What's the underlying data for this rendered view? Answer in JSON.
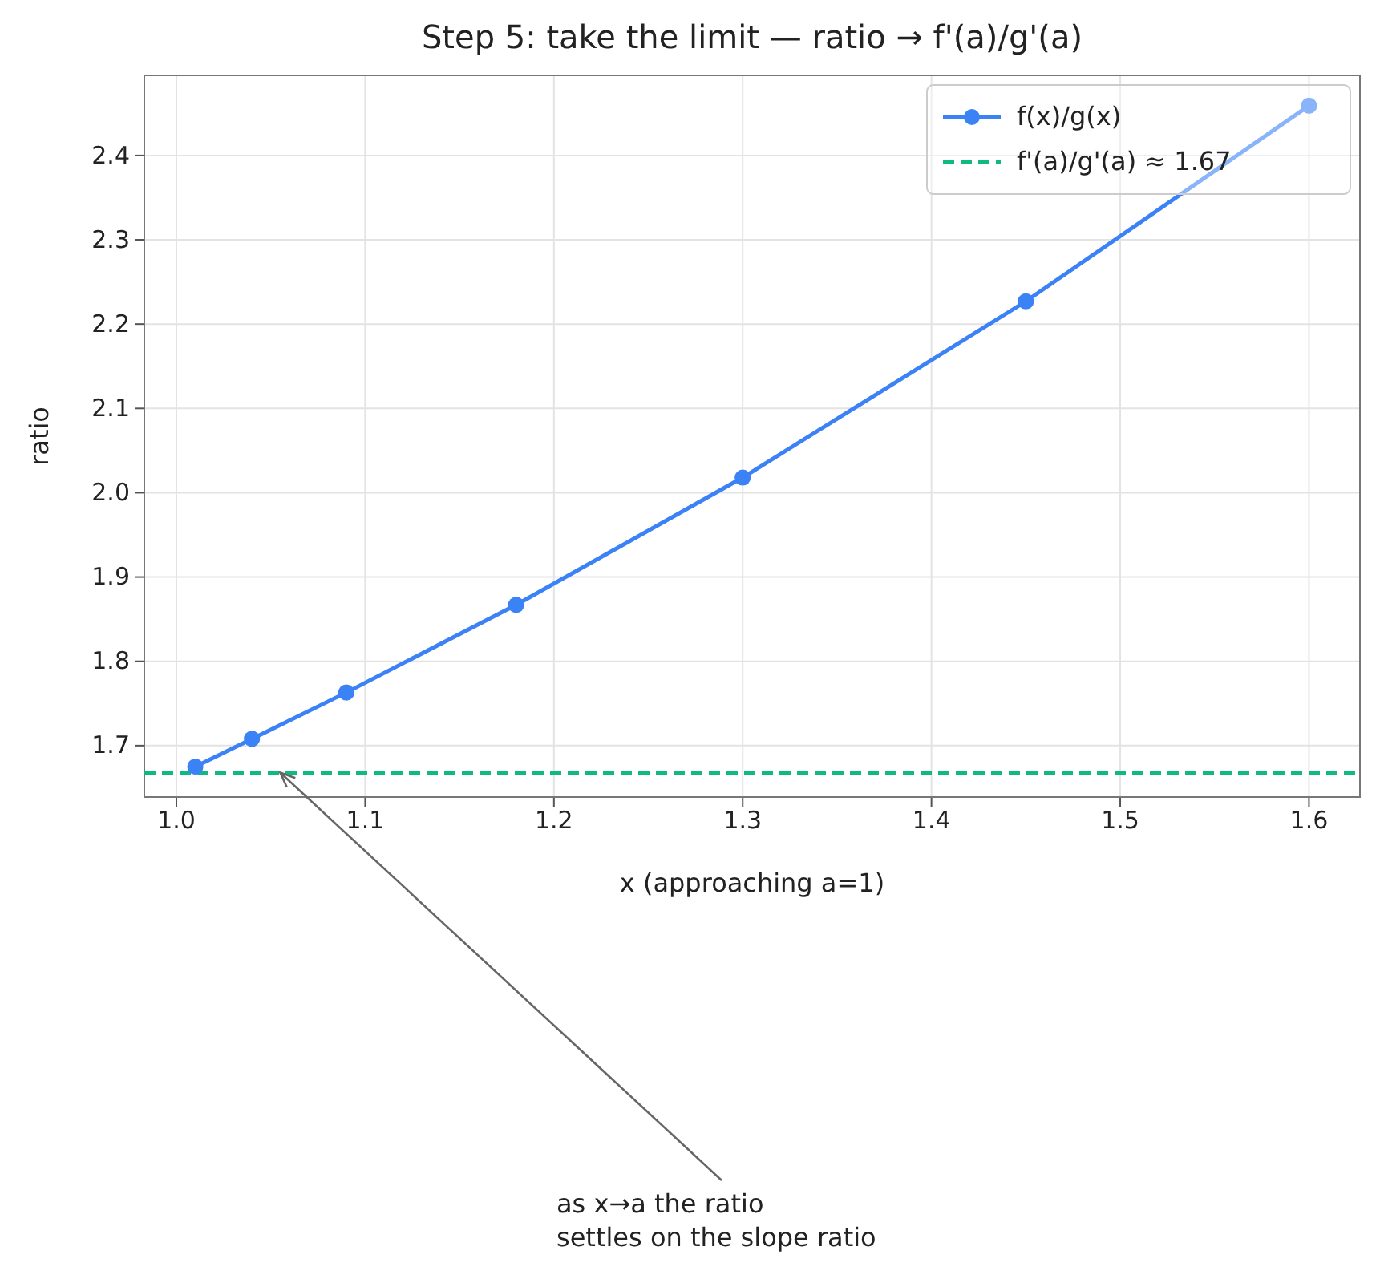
{
  "chart_data": {
    "type": "line",
    "title": "Step 5: take the limit — ratio → f'(a)/g'(a)",
    "xlabel": "x  (approaching a=1)",
    "ylabel": "ratio",
    "x": [
      1.01,
      1.04,
      1.09,
      1.18,
      1.3,
      1.45,
      1.6
    ],
    "series": [
      {
        "name": "f(x)/g(x)",
        "color": "#3b82f6",
        "values": [
          1.675,
          1.708,
          1.763,
          1.867,
          2.018,
          2.227,
          2.459
        ]
      }
    ],
    "xlim": [
      0.983,
      1.627
    ],
    "xticks": [
      {
        "value": 1.0,
        "label": "1.0"
      },
      1.1,
      1.2,
      1.3,
      1.4,
      1.5,
      1.6
    ],
    "ylim": [
      1.639,
      2.495
    ],
    "yticks": [
      1.7,
      1.8,
      1.9,
      {
        "value": 2.0,
        "label": "2.0"
      },
      2.1,
      2.2,
      2.3,
      2.4
    ],
    "ref_lines": [
      {
        "axis": "y",
        "value": 1.667,
        "label": "f'(a)/g'(a) ≈ 1.67",
        "color": "#10b981",
        "line_style": "dashed"
      }
    ],
    "annotations": [
      {
        "text": "as x→a the ratio\nsettles on the slope ratio",
        "x": 1.055,
        "y": 1.668
      }
    ],
    "grid": true,
    "legend": "top right",
    "marker": "circle",
    "line_style": "solid"
  }
}
